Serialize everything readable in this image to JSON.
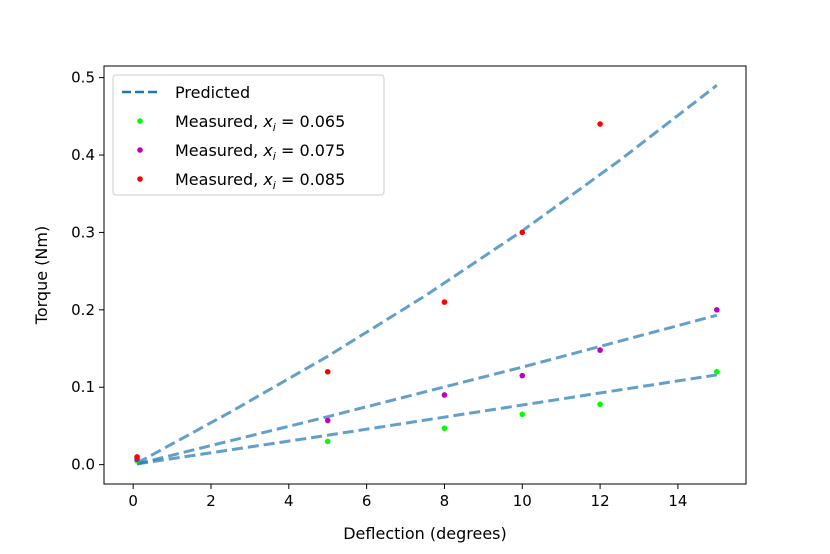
{
  "chart_data": {
    "type": "scatter",
    "title": "",
    "xlabel": "Deflection (degrees)",
    "ylabel": "Torque (Nm)",
    "xlim": [
      -0.75,
      15.75
    ],
    "ylim": [
      -0.025,
      0.515
    ],
    "xticks": [
      0,
      2,
      4,
      6,
      8,
      10,
      12,
      14
    ],
    "yticks": [
      0.0,
      0.1,
      0.2,
      0.3,
      0.4,
      0.5
    ],
    "xtick_labels": [
      "0",
      "2",
      "4",
      "6",
      "8",
      "10",
      "12",
      "14"
    ],
    "ytick_labels": [
      "0.0",
      "0.1",
      "0.2",
      "0.3",
      "0.4",
      "0.5"
    ],
    "grid": false,
    "legend_position": "top-left",
    "predicted": {
      "name": "Predicted",
      "color": "#1f77b4",
      "style": "dashed",
      "lines": [
        {
          "x": [
            0.1,
            2.5,
            5,
            7.5,
            10,
            12.5,
            15
          ],
          "y": [
            0.002,
            0.068,
            0.14,
            0.218,
            0.302,
            0.393,
            0.49
          ]
        },
        {
          "x": [
            0.1,
            5,
            10,
            15
          ],
          "y": [
            0.001,
            0.062,
            0.126,
            0.193
          ]
        },
        {
          "x": [
            0.1,
            5,
            10,
            15
          ],
          "y": [
            0.001,
            0.038,
            0.077,
            0.116
          ]
        }
      ]
    },
    "series": [
      {
        "legend_prefix": "Measured, ",
        "legend_var": "x",
        "legend_sub": "i",
        "legend_value": " = 0.065",
        "color": "#00ff00",
        "x": [
          0.1,
          5,
          8,
          10,
          12,
          15
        ],
        "y": [
          0.005,
          0.03,
          0.047,
          0.065,
          0.078,
          0.12
        ]
      },
      {
        "legend_prefix": "Measured, ",
        "legend_var": "x",
        "legend_sub": "i",
        "legend_value": " = 0.075",
        "color": "#bf00bf",
        "x": [
          0.1,
          5,
          8,
          10,
          12,
          15
        ],
        "y": [
          0.007,
          0.057,
          0.09,
          0.115,
          0.148,
          0.2
        ]
      },
      {
        "legend_prefix": "Measured, ",
        "legend_var": "x",
        "legend_sub": "i",
        "legend_value": " = 0.085",
        "color": "#ff0000",
        "x": [
          0.1,
          5,
          8,
          10,
          12
        ],
        "y": [
          0.01,
          0.12,
          0.21,
          0.3,
          0.44
        ]
      }
    ]
  }
}
